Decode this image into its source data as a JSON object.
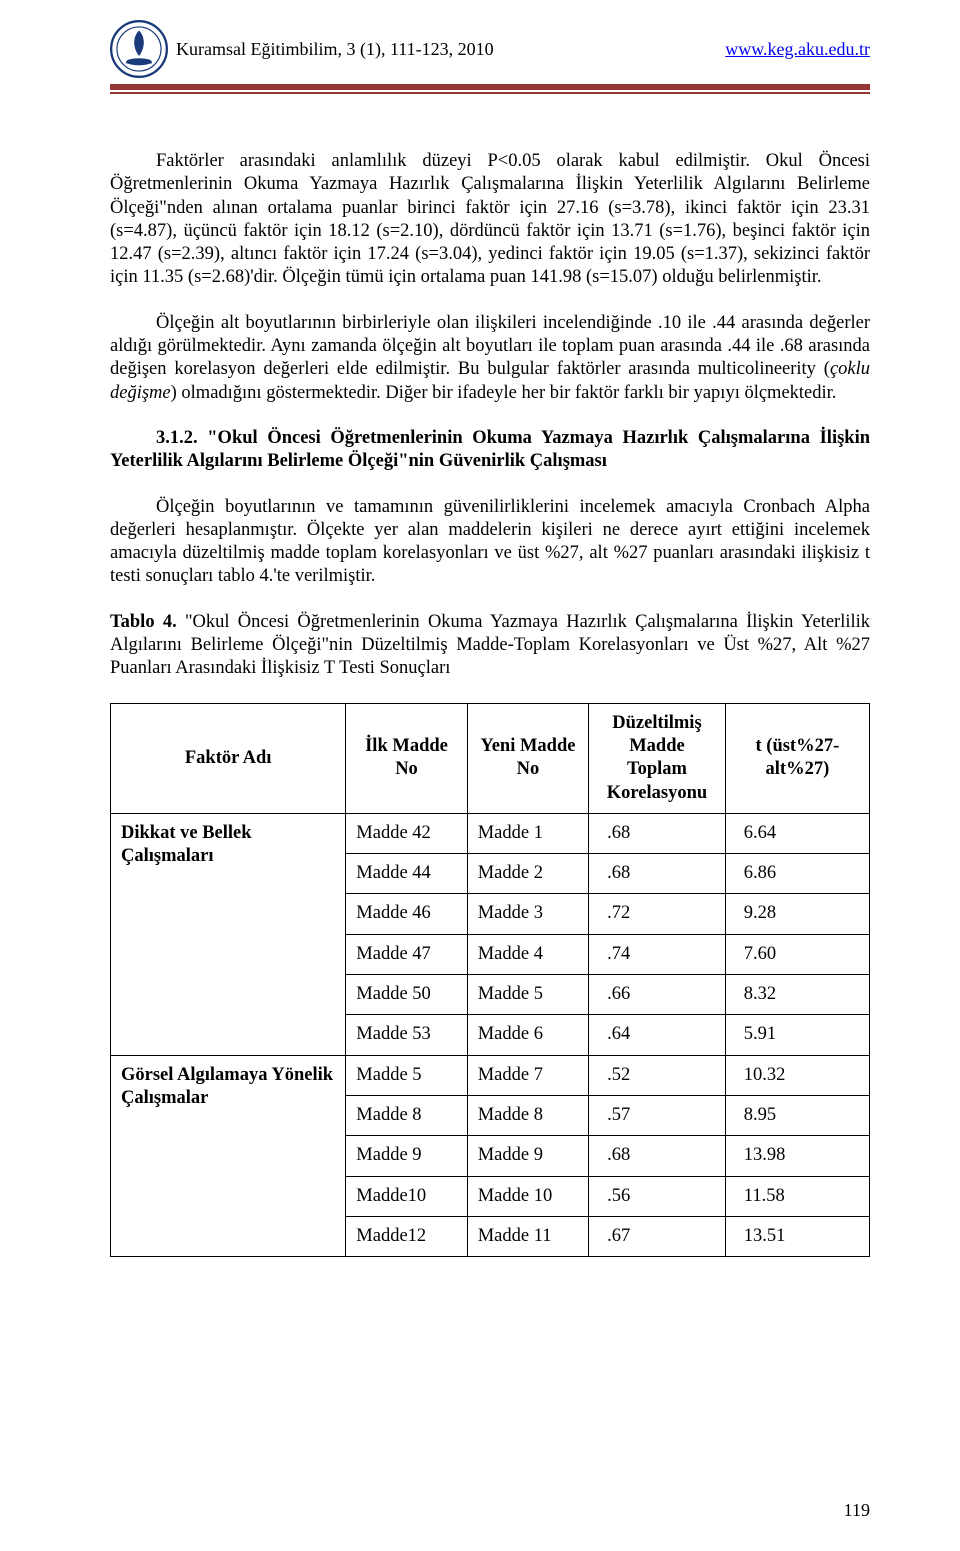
{
  "header": {
    "journal_info": "Kuramsal Eğitimbilim, 3 (1), 111-123, 2010",
    "link_text": "www.keg.aku.edu.tr"
  },
  "divider_color": "#943634",
  "paragraphs": {
    "p1": "Faktörler arasındaki anlamlılık düzeyi P<0.05 olarak kabul edilmiştir. Okul Öncesi Öğretmenlerinin Okuma Yazmaya Hazırlık Çalışmalarına İlişkin Yeterlilik Algılarını Belirleme Ölçeği\"nden alınan ortalama puanlar birinci faktör için 27.16 (s=3.78), ikinci faktör için 23.31 (s=4.87), üçüncü faktör için 18.12 (s=2.10), dördüncü faktör için 13.71 (s=1.76), beşinci faktör için 12.47 (s=2.39), altıncı faktör için 17.24 (s=3.04), yedinci faktör için 19.05 (s=1.37), sekizinci faktör için 11.35 (s=2.68)'dir. Ölçeğin tümü için ortalama puan 141.98 (s=15.07) olduğu belirlenmiştir.",
    "p2_lead": "Ölçeğin alt boyutlarının birbirleriyle olan ilişkileri incelendiğinde .10 ile .44 arasında değerler aldığı görülmektedir. Aynı zamanda ölçeğin alt boyutları ile toplam puan arasında .44 ile .68 arasında değişen korelasyon değerleri elde edilmiştir. Bu bulgular faktörler arasında multicolineerity (",
    "p2_italic": "çoklu değişme",
    "p2_tail": ") olmadığını göstermektedir. Diğer bir ifadeyle her bir faktör farklı bir yapıyı ölçmektedir.",
    "p3_bold": "3.1.2. \"Okul Öncesi Öğretmenlerinin Okuma Yazmaya Hazırlık Çalışmalarına İlişkin Yeterlilik Algılarını Belirleme Ölçeği\"nin Güvenirlik Çalışması",
    "p4": "Ölçeğin boyutlarının ve tamamının güvenilirliklerini incelemek amacıyla Cronbach Alpha değerleri hesaplanmıştır. Ölçekte yer alan maddelerin kişileri ne derece ayırt ettiğini incelemek amacıyla düzeltilmiş madde toplam korelasyonları ve üst %27, alt %27 puanları arasındaki ilişkisiz t testi sonuçları tablo 4.'te verilmiştir.",
    "p5_bold": "Tablo 4.",
    "p5_rest": "   \"Okul Öncesi Öğretmenlerinin Okuma Yazmaya Hazırlık Çalışmalarına İlişkin Yeterlilik Algılarını Belirleme Ölçeği\"nin Düzeltilmiş Madde-Toplam Korelasyonları ve Üst %27, Alt %27 Puanları Arasındaki İlişkisiz T Testi Sonuçları"
  },
  "table": {
    "columns": [
      "Faktör Adı",
      "İlk Madde No",
      "Yeni Madde No",
      "Düzeltilmiş Madde Toplam Korelasyonu",
      "t (üst%27-alt%27)"
    ],
    "col_widths_pct": [
      31,
      16,
      16,
      18,
      19
    ],
    "groups": [
      {
        "factor": "Dikkat ve Bellek Çalışmaları",
        "rows": [
          [
            "Madde 42",
            "Madde 1",
            ".68",
            "6.64"
          ],
          [
            "Madde 44",
            "Madde 2",
            ".68",
            "6.86"
          ],
          [
            "Madde 46",
            "Madde 3",
            ".72",
            "9.28"
          ],
          [
            "Madde 47",
            "Madde 4",
            ".74",
            "7.60"
          ],
          [
            "Madde 50",
            "Madde 5",
            ".66",
            "8.32"
          ],
          [
            "Madde 53",
            "Madde 6",
            ".64",
            "5.91"
          ]
        ]
      },
      {
        "factor": "Görsel Algılamaya Yönelik Çalışmalar",
        "rows": [
          [
            "Madde 5",
            "Madde 7",
            ".52",
            "10.32"
          ],
          [
            "Madde 8",
            "Madde 8",
            ".57",
            "8.95"
          ],
          [
            "Madde 9",
            "Madde 9",
            ".68",
            "13.98"
          ],
          [
            "Madde10",
            "Madde 10",
            ".56",
            "11.58"
          ],
          [
            "Madde12",
            "Madde 11",
            ".67",
            "13.51"
          ]
        ]
      }
    ]
  },
  "page_number": "119",
  "fonts": {
    "body_family": "Times New Roman",
    "body_size_pt": 14
  },
  "colors": {
    "text": "#000000",
    "link": "#0000ee",
    "rule": "#943634",
    "background": "#ffffff",
    "table_border": "#000000"
  }
}
